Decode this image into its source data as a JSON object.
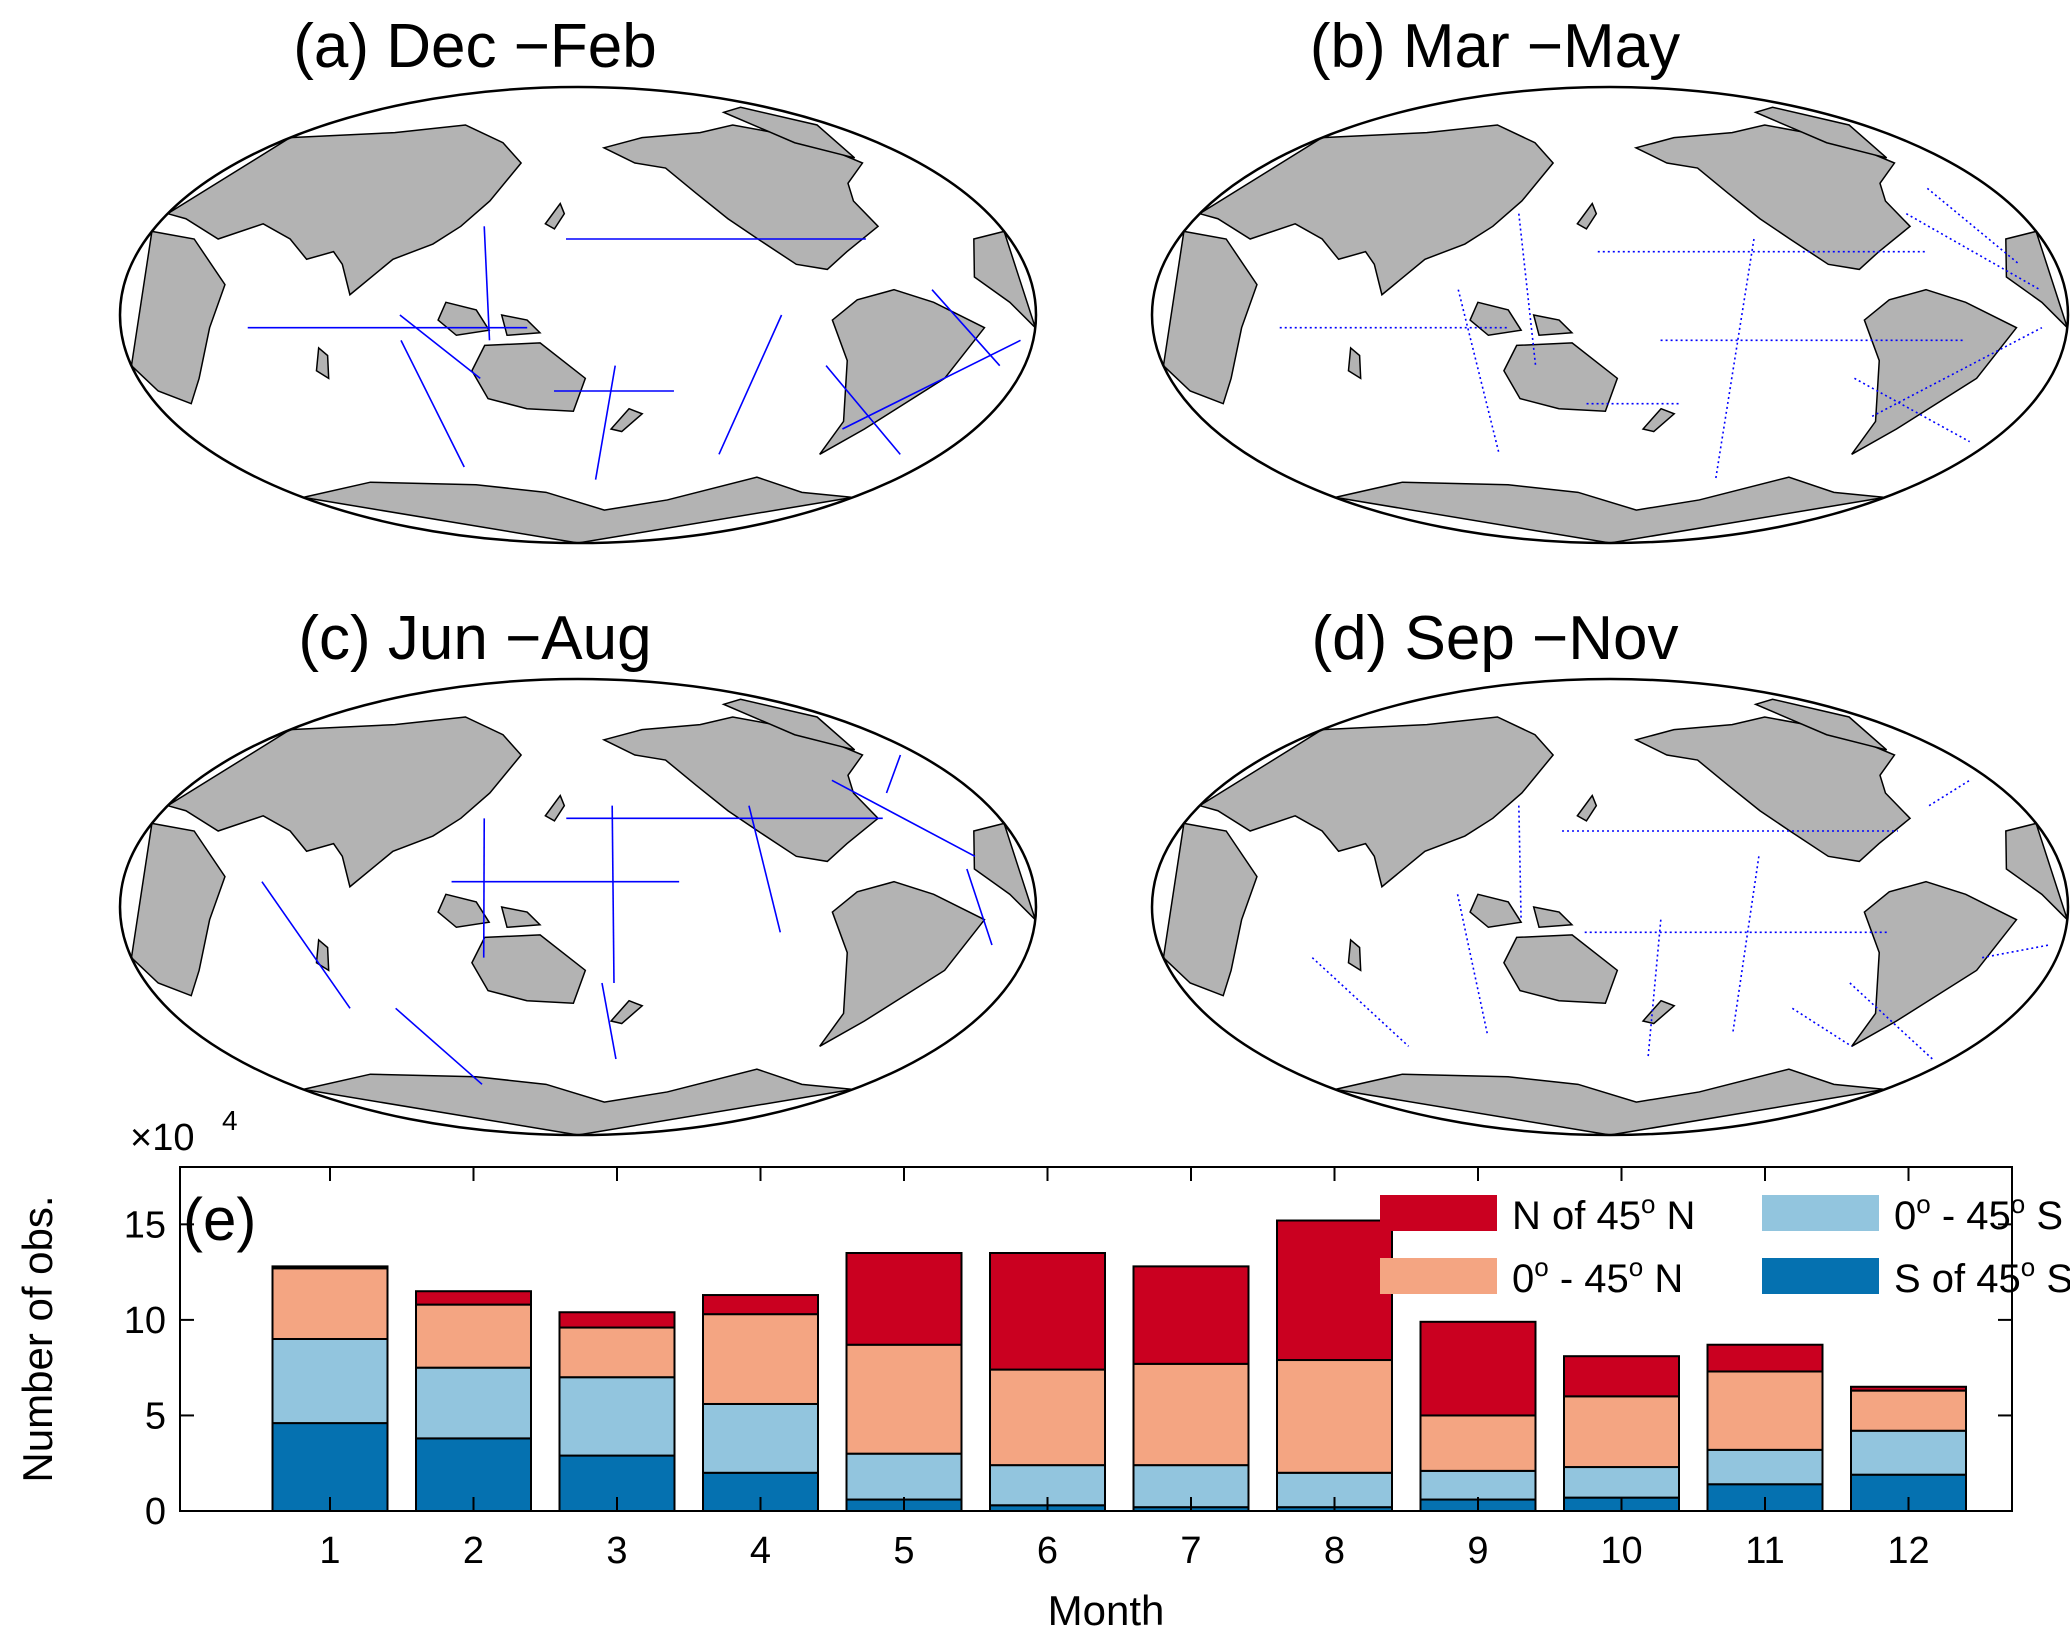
{
  "maps": [
    {
      "id": "a",
      "title": "(a) Dec −Feb"
    },
    {
      "id": "b",
      "title": "(b) Mar −May"
    },
    {
      "id": "c",
      "title": "(c) Jun −Aug"
    },
    {
      "id": "d",
      "title": "(d) Sep −Nov"
    }
  ],
  "colors": {
    "land": "#b3b3b3",
    "ocean": "#ffffff",
    "tracks": "#0000ff",
    "outline": "#000000"
  },
  "chart_data": {
    "type": "bar",
    "stacked": true,
    "panel_label": "(e)",
    "xlabel": "Month",
    "ylabel": "Number of obs.",
    "y_multiplier_label": "×10",
    "y_multiplier_exponent": "4",
    "categories": [
      "1",
      "2",
      "3",
      "4",
      "5",
      "6",
      "7",
      "8",
      "9",
      "10",
      "11",
      "12"
    ],
    "ylim": [
      0,
      18
    ],
    "yticks": [
      0,
      5,
      10,
      15
    ],
    "series": [
      {
        "name": "S of 45° S",
        "name_parts": [
          "S of 45",
          "o",
          " S"
        ],
        "color": "#0571b0",
        "values": [
          4.6,
          3.8,
          2.9,
          2.0,
          0.6,
          0.3,
          0.2,
          0.2,
          0.6,
          0.7,
          1.4,
          1.9
        ]
      },
      {
        "name": "0° - 45° S",
        "name_parts": [
          "0",
          "o",
          " - 45",
          "o",
          " S"
        ],
        "color": "#92c5de",
        "values": [
          4.4,
          3.7,
          4.1,
          3.6,
          2.4,
          2.1,
          2.2,
          1.8,
          1.5,
          1.6,
          1.8,
          2.3
        ]
      },
      {
        "name": "0° - 45° N",
        "name_parts": [
          "0",
          "o",
          " - 45",
          "o",
          " N"
        ],
        "color": "#f4a582",
        "values": [
          3.7,
          3.3,
          2.6,
          4.7,
          5.7,
          5.0,
          5.3,
          5.9,
          2.9,
          3.7,
          4.1,
          2.1
        ]
      },
      {
        "name": "N of 45° N",
        "name_parts": [
          "N of 45",
          "o",
          " N"
        ],
        "color": "#ca0020",
        "values": [
          0.1,
          0.7,
          0.8,
          1.0,
          4.8,
          6.1,
          5.1,
          7.3,
          4.9,
          2.1,
          1.4,
          0.2
        ]
      }
    ],
    "legend_position": "top-right"
  }
}
